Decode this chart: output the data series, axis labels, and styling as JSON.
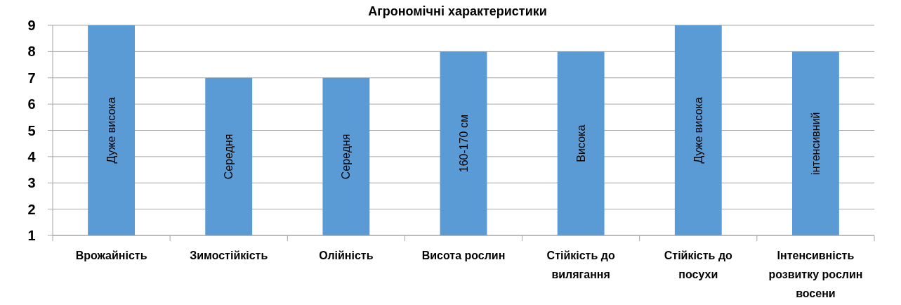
{
  "chart_data": {
    "type": "bar",
    "title": "Агрономічні характеристики",
    "categories": [
      "Врожайність",
      "Зимостійкість",
      "Олійність",
      "Висота рослин",
      "Стійкість до вилягання",
      "Стійкість до посухи",
      "Інтенсивність розвитку рослин восени"
    ],
    "values": [
      9,
      7,
      7,
      8,
      8,
      9,
      8
    ],
    "value_labels": [
      "Дуже висока",
      "Середня",
      "Середня",
      "160-170 см",
      "Висока",
      "Дуже висока",
      "інтенсивний"
    ],
    "color": "#5b9bd5",
    "ylim": [
      1,
      9
    ],
    "yticks": [
      1,
      2,
      3,
      4,
      5,
      6,
      7,
      8,
      9
    ],
    "grid": "y"
  }
}
